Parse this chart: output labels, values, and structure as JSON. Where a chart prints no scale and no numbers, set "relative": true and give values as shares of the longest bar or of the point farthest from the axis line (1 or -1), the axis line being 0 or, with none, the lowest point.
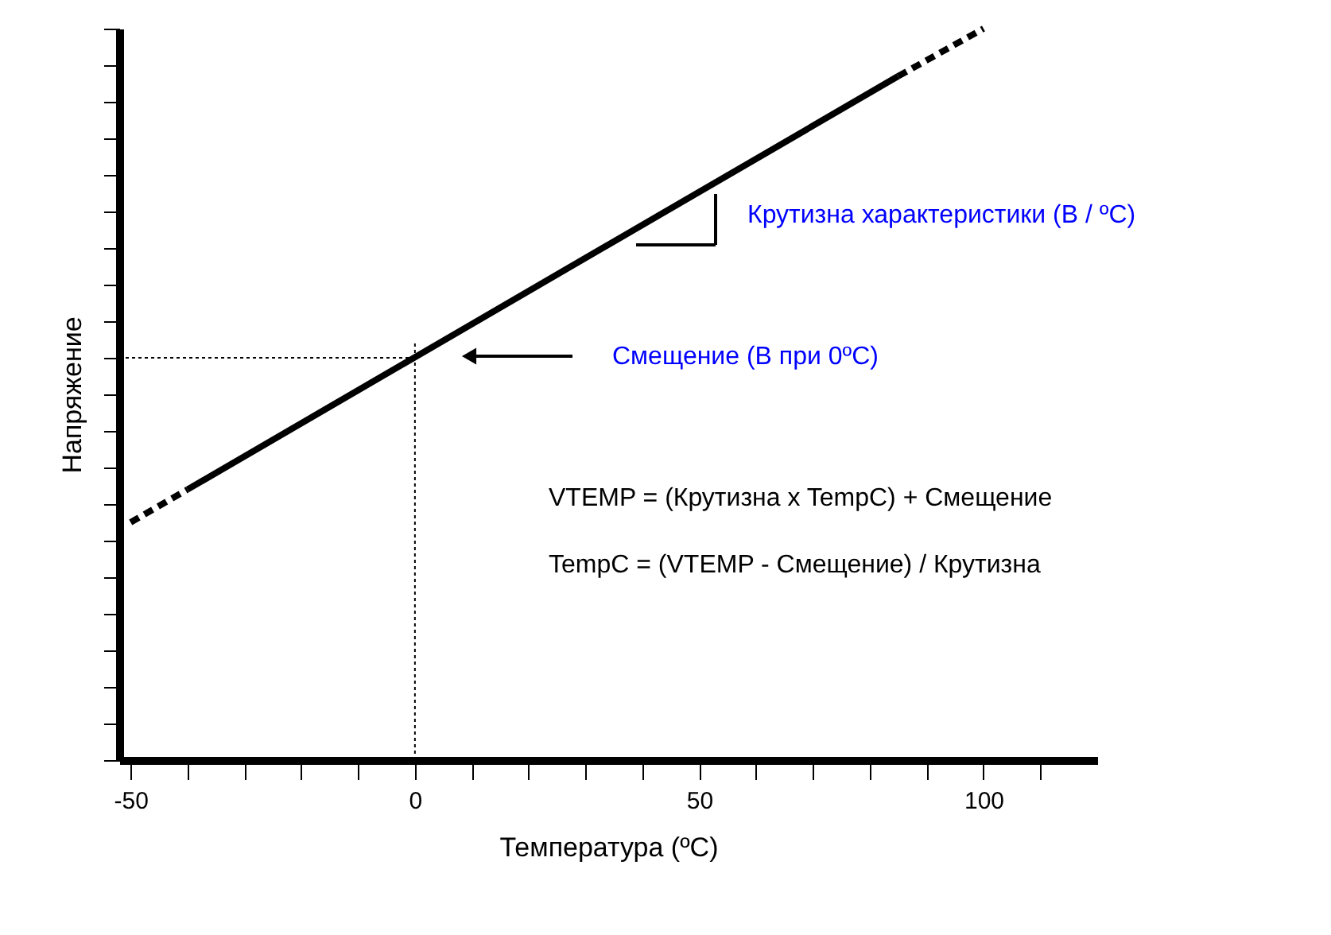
{
  "chart_data": {
    "type": "line",
    "relative": true,
    "xlabel": "Температура (ºC)",
    "ylabel": "Напряжение",
    "xlim": [
      -52,
      120
    ],
    "xticks": [
      -50,
      {
        "value": -40,
        "label": null
      },
      {
        "value": -30,
        "label": null
      },
      {
        "value": -20,
        "label": null
      },
      {
        "value": -10,
        "label": null
      },
      0,
      {
        "value": 10,
        "label": null
      },
      {
        "value": 20,
        "label": null
      },
      {
        "value": 30,
        "label": null
      },
      {
        "value": 40,
        "label": null
      },
      50,
      {
        "value": 60,
        "label": null
      },
      {
        "value": 70,
        "label": null
      },
      {
        "value": 80,
        "label": null
      },
      {
        "value": 90,
        "label": null
      },
      100,
      {
        "value": 110,
        "label": null
      }
    ],
    "series": [
      {
        "color": "#000000",
        "x": [
          -40,
          85
        ],
        "values": [
          0.37,
          0.935
        ],
        "line_style": "solid"
      },
      {
        "color": "#000000",
        "x": [
          -50,
          -40
        ],
        "values": [
          0.325,
          0.37
        ],
        "line_style": "dashed"
      },
      {
        "color": "#000000",
        "x": [
          85,
          100
        ],
        "values": [
          0.935,
          1.0
        ],
        "line_style": "dashed"
      }
    ],
    "ref_lines": [
      {
        "axis": "x",
        "value": 0,
        "line_style": "dotted"
      },
      {
        "axis": "y",
        "value": 0.55,
        "line_style": "dotted"
      }
    ],
    "annotations": [
      "Крутизна характеристики (В / ºC)",
      "Смещение (В при 0ºC)",
      "VTEMP = (Крутизна x TempC) + Смещение",
      "TempC = (VTEMP - Смещение) / Крутизна"
    ],
    "tick_labels": "x",
    "grid": false
  }
}
